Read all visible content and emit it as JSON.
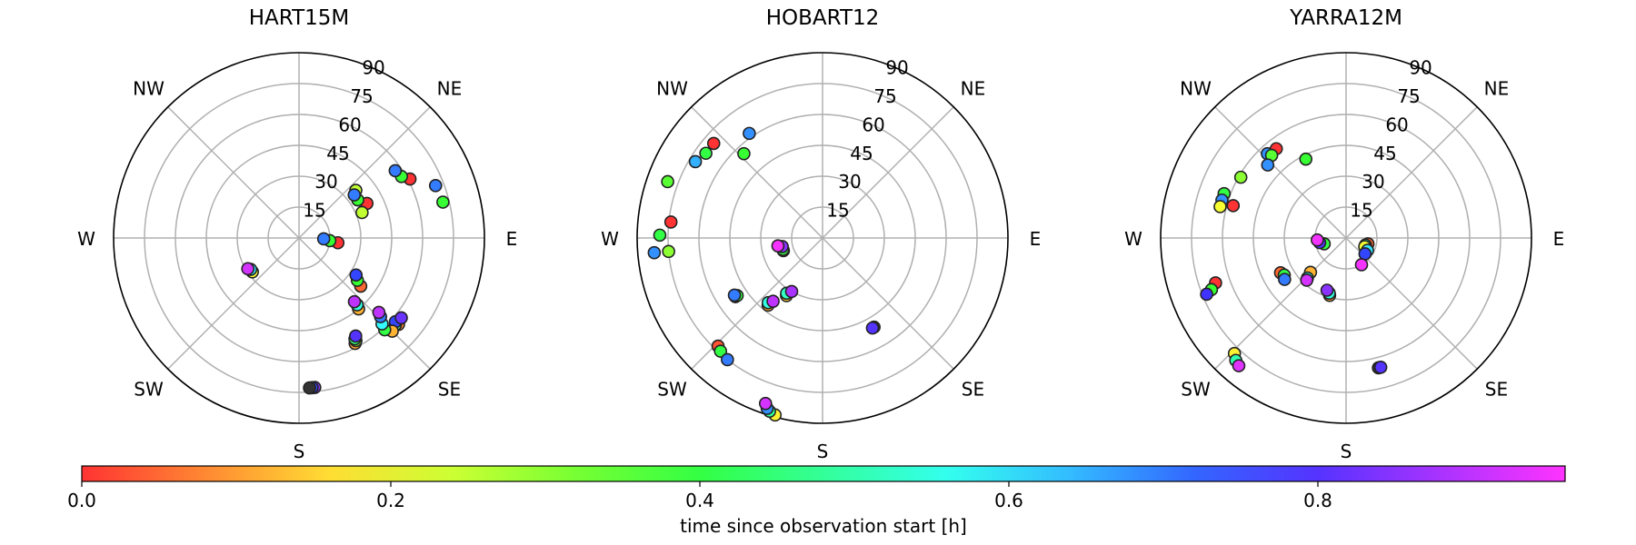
{
  "chart_data": {
    "type": "scatter",
    "subtype": "polar-skyplot",
    "radial_ticks": [
      "15",
      "30",
      "45",
      "60",
      "75",
      "90"
    ],
    "radial_range": [
      0,
      90
    ],
    "compass_labels": [
      "NE",
      "E",
      "SE",
      "S",
      "SW",
      "W",
      "NW"
    ],
    "grid": true,
    "legend": "none",
    "colorbar": {
      "label": "time since observation start [h]",
      "ticks": [
        "0.0",
        "0.2",
        "0.4",
        "0.6",
        "0.8"
      ],
      "tick_values": [
        0.0,
        0.2,
        0.4,
        0.6,
        0.8
      ],
      "range": [
        0,
        0.96
      ],
      "colormap": "hsv",
      "placement": "bottom"
    },
    "panels": [
      {
        "title": "HART15M",
        "points": [
          {
            "az": 62,
            "zen": 61,
            "t": 0.0
          },
          {
            "az": 59,
            "zen": 58,
            "t": 0.38
          },
          {
            "az": 55,
            "zen": 57,
            "t": 0.7
          },
          {
            "az": 69,
            "zen": 71,
            "t": 0.7
          },
          {
            "az": 76,
            "zen": 72,
            "t": 0.38
          },
          {
            "az": 50,
            "zen": 36,
            "t": 0.25
          },
          {
            "az": 63,
            "zen": 37,
            "t": 0.0
          },
          {
            "az": 57,
            "zen": 34,
            "t": 0.38
          },
          {
            "az": 52,
            "zen": 34,
            "t": 0.7
          },
          {
            "az": 68,
            "zen": 33,
            "t": 0.25
          },
          {
            "az": 97,
            "zen": 19,
            "t": 0.0
          },
          {
            "az": 95,
            "zen": 15,
            "t": 0.38
          },
          {
            "az": 92,
            "zen": 12,
            "t": 0.7
          },
          {
            "az": 128,
            "zen": 38,
            "t": 0.05
          },
          {
            "az": 126,
            "zen": 35,
            "t": 0.38
          },
          {
            "az": 123,
            "zen": 33,
            "t": 0.75
          },
          {
            "az": 140,
            "zen": 45,
            "t": 0.12
          },
          {
            "az": 139,
            "zen": 43,
            "t": 0.55
          },
          {
            "az": 139,
            "zen": 41,
            "t": 0.9
          },
          {
            "az": 131,
            "zen": 64,
            "t": 0.08
          },
          {
            "az": 132,
            "zen": 63,
            "t": 0.48
          },
          {
            "az": 131,
            "zen": 62,
            "t": 0.75
          },
          {
            "az": 128,
            "zen": 63,
            "t": 0.82
          },
          {
            "az": 135,
            "zen": 64,
            "t": 0.12
          },
          {
            "az": 137,
            "zen": 61,
            "t": 0.4
          },
          {
            "az": 136,
            "zen": 58,
            "t": 0.58
          },
          {
            "az": 134,
            "zen": 55,
            "t": 0.7
          },
          {
            "az": 133,
            "zen": 53,
            "t": 0.9
          },
          {
            "az": 152,
            "zen": 58,
            "t": 0.1
          },
          {
            "az": 151,
            "zen": 57,
            "t": 0.3
          },
          {
            "az": 151,
            "zen": 56,
            "t": 0.45
          },
          {
            "az": 150,
            "zen": 55,
            "t": 0.8
          },
          {
            "az": 174,
            "zen": 73,
            "t": 0.85
          },
          {
            "az": 175,
            "zen": 73,
            "t": 0.75
          },
          {
            "az": 176,
            "zen": 73,
            "t": null
          },
          {
            "az": 234,
            "zen": 28,
            "t": 0.2
          },
          {
            "az": 237,
            "zen": 28,
            "t": 0.6
          },
          {
            "az": 239,
            "zen": 29,
            "t": 0.92
          }
        ]
      },
      {
        "title": "HOBART12",
        "points": [
          {
            "az": 325,
            "zen": 62,
            "t": 0.68
          },
          {
            "az": 311,
            "zen": 70,
            "t": 0.0
          },
          {
            "az": 306,
            "zen": 70,
            "t": 0.4
          },
          {
            "az": 301,
            "zen": 72,
            "t": 0.65
          },
          {
            "az": 317,
            "zen": 56,
            "t": 0.38
          },
          {
            "az": 290,
            "zen": 80,
            "t": 0.35
          },
          {
            "az": 276,
            "zen": 74,
            "t": 0.0
          },
          {
            "az": 271,
            "zen": 79,
            "t": 0.4
          },
          {
            "az": 265,
            "zen": 75,
            "t": 0.3
          },
          {
            "az": 265,
            "zen": 82,
            "t": 0.68
          },
          {
            "az": 224,
            "zen": 73,
            "t": 0.03
          },
          {
            "az": 222,
            "zen": 74,
            "t": 0.4
          },
          {
            "az": 218,
            "zen": 75,
            "t": 0.7
          },
          {
            "az": 236,
            "zen": 51,
            "t": 0.03
          },
          {
            "az": 236,
            "zen": 50,
            "t": 0.4
          },
          {
            "az": 237,
            "zen": 51,
            "t": 0.7
          },
          {
            "az": 219,
            "zen": 42,
            "t": 0.12
          },
          {
            "az": 220,
            "zen": 41,
            "t": 0.55
          },
          {
            "az": 218,
            "zen": 39,
            "t": 0.9
          },
          {
            "az": 212,
            "zen": 33,
            "t": 0.15
          },
          {
            "az": 213,
            "zen": 32,
            "t": 0.52
          },
          {
            "az": 210,
            "zen": 30,
            "t": 0.88
          },
          {
            "az": 195,
            "zen": 89,
            "t": 0.18
          },
          {
            "az": 197,
            "zen": 88,
            "t": 0.48
          },
          {
            "az": 198,
            "zen": 87,
            "t": 0.68
          },
          {
            "az": 199,
            "zen": 85,
            "t": 0.92
          },
          {
            "az": 252,
            "zen": 20,
            "t": 0.03
          },
          {
            "az": 254,
            "zen": 20,
            "t": 0.4
          },
          {
            "az": 258,
            "zen": 20,
            "t": 0.85
          },
          {
            "az": 260,
            "zen": 22,
            "t": 0.95
          },
          {
            "az": 150,
            "zen": 50,
            "t": null
          },
          {
            "az": 151,
            "zen": 50,
            "t": 0.8
          }
        ]
      },
      {
        "title": "YARRA12M",
        "points": [
          {
            "az": 317,
            "zen": 56,
            "t": 0.68
          },
          {
            "az": 322,
            "zen": 55,
            "t": 0.0
          },
          {
            "az": 318,
            "zen": 54,
            "t": 0.35
          },
          {
            "az": 313,
            "zen": 52,
            "t": 0.68
          },
          {
            "az": 333,
            "zen": 43,
            "t": 0.38
          },
          {
            "az": 300,
            "zen": 59,
            "t": 0.3
          },
          {
            "az": 286,
            "zen": 57,
            "t": 0.0
          },
          {
            "az": 290,
            "zen": 63,
            "t": 0.4
          },
          {
            "az": 287,
            "zen": 63,
            "t": 0.68
          },
          {
            "az": 284,
            "zen": 63,
            "t": 0.2
          },
          {
            "az": 251,
            "zen": 67,
            "t": 0.0
          },
          {
            "az": 249,
            "zen": 70,
            "t": 0.38
          },
          {
            "az": 248,
            "zen": 73,
            "t": 0.78
          },
          {
            "az": 242,
            "zen": 36,
            "t": 0.05
          },
          {
            "az": 239,
            "zen": 35,
            "t": 0.4
          },
          {
            "az": 236,
            "zen": 36,
            "t": 0.7
          },
          {
            "az": 226,
            "zen": 24,
            "t": 0.12
          },
          {
            "az": 224,
            "zen": 27,
            "t": 0.55
          },
          {
            "az": 223,
            "zen": 28,
            "t": 0.92
          },
          {
            "az": 196,
            "zen": 29,
            "t": 0.1
          },
          {
            "az": 197,
            "zen": 28,
            "t": 0.55
          },
          {
            "az": 200,
            "zen": 27,
            "t": 0.85
          },
          {
            "az": 224,
            "zen": 78,
            "t": 0.18
          },
          {
            "az": 222,
            "zen": 80,
            "t": 0.5
          },
          {
            "az": 220,
            "zen": 81,
            "t": 0.93
          },
          {
            "az": 105,
            "zen": 11,
            "t": 0.05
          },
          {
            "az": 110,
            "zen": 10,
            "t": 0.45
          },
          {
            "az": 115,
            "zen": 10,
            "t": 0.2
          },
          {
            "az": 120,
            "zen": 12,
            "t": 0.6
          },
          {
            "az": 130,
            "zen": 12,
            "t": 0.75
          },
          {
            "az": 150,
            "zen": 15,
            "t": 0.95
          },
          {
            "az": 255,
            "zen": 11,
            "t": 0.4
          },
          {
            "az": 260,
            "zen": 13,
            "t": 0.8
          },
          {
            "az": 266,
            "zen": 14,
            "t": 0.95
          },
          {
            "az": 166,
            "zen": 65,
            "t": null
          },
          {
            "az": 165,
            "zen": 65,
            "t": 0.8
          }
        ]
      }
    ]
  }
}
